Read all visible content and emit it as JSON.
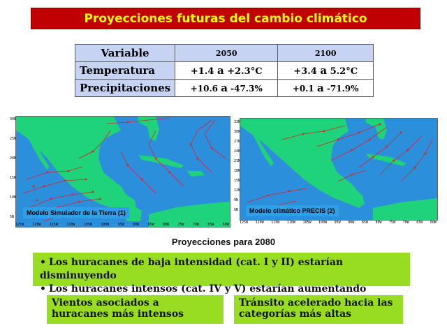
{
  "title": "Proyecciones futuras del cambio climático",
  "table": {
    "headers": [
      "Variable",
      "2050",
      "2100"
    ],
    "rows": [
      {
        "label": "Temperatura",
        "v2050": {
          "from": "+1.4",
          "sep": "a",
          "to": "+2.3°C"
        },
        "v2100": {
          "from": "+3.4",
          "sep": "a",
          "to": "5.2°C"
        }
      },
      {
        "label": "Precipitaciones",
        "v2050": {
          "from": "+10.6",
          "sep": "a",
          "to": "-47.3%"
        },
        "v2100": {
          "from": "+0.1",
          "sep": "a",
          "to": "-71.9%"
        }
      }
    ]
  },
  "maps": {
    "left": {
      "label": "Modelo Simulador de la Tierra (1)",
      "y_ticks": [
        "30N",
        "25N",
        "20N",
        "15N",
        "10N",
        "5N"
      ],
      "x_ticks": [
        "125W",
        "120W",
        "115W",
        "110W",
        "105W",
        "100W",
        "95W",
        "90W",
        "85W",
        "80W",
        "75W",
        "70W",
        "65W",
        "60W"
      ]
    },
    "right": {
      "label": "Modelo climático PRECIS (2)",
      "y_ticks": [
        "33N",
        "30N",
        "27N",
        "24N",
        "21N",
        "18N",
        "15N",
        "12N",
        "9N",
        "6N"
      ],
      "x_ticks": [
        "125W",
        "120W",
        "115W",
        "110W",
        "105W",
        "100W",
        "95W",
        "90W",
        "85W",
        "80W",
        "75W",
        "70W",
        "65W",
        "60W"
      ]
    }
  },
  "projection_title": "Proyecciones para 2080",
  "bullets": [
    "Los huracanes de baja intensidad (cat. I y II) estarían disminuyendo",
    "Los huracanes intensos (cat. IV y V) estarían aumentando"
  ],
  "box_a": "Vientos asociados a huracanes más intensos",
  "box_b": "Tránsito acelerado hacia las categorías más altas",
  "colors": {
    "title_bg": "#c00000",
    "title_text": "#ffff00",
    "table_header_bg": "#c6d3f2",
    "ocean": "#2b8fdc",
    "land": "#1fd37a",
    "track": "#e02020",
    "box_green": "#99dd22"
  }
}
